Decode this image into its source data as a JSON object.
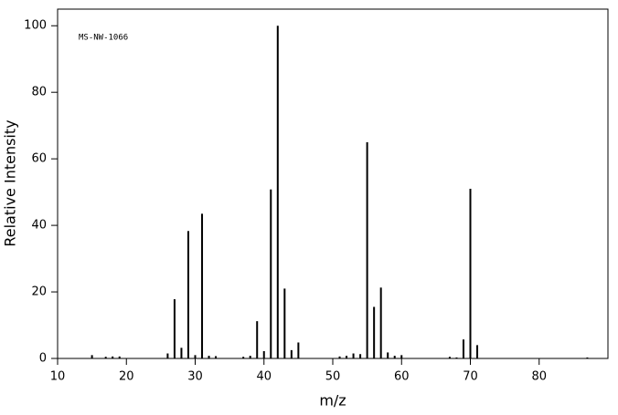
{
  "chart_data": {
    "type": "bar",
    "title": "MS-NW-1066",
    "x_label": "m/z",
    "y_label": "Relative Intensity",
    "x": [
      15,
      17,
      18,
      19,
      26,
      27,
      28,
      29,
      30,
      31,
      32,
      33,
      37,
      38,
      39,
      40,
      41,
      42,
      43,
      44,
      45,
      51,
      52,
      53,
      54,
      55,
      56,
      57,
      58,
      59,
      60,
      67,
      68,
      69,
      70,
      71,
      87
    ],
    "values": [
      1,
      0.5,
      0.6,
      0.6,
      1.5,
      17.8,
      3.2,
      38.3,
      1,
      43.5,
      0.8,
      0.7,
      0.5,
      0.8,
      11.2,
      2.2,
      50.8,
      100,
      21,
      2.5,
      4.8,
      0.6,
      0.8,
      1.5,
      1.3,
      65,
      15.5,
      21.3,
      1.8,
      0.8,
      1,
      0.5,
      0.3,
      5.7,
      51,
      4,
      0.3
    ],
    "color": "#000000",
    "xlim": [
      10,
      90
    ],
    "xticks": [
      10,
      20,
      30,
      40,
      50,
      60,
      70,
      80
    ],
    "ylim": [
      0,
      105
    ],
    "yticks": [
      0,
      20,
      40,
      60,
      80,
      100
    ],
    "grid": false
  }
}
